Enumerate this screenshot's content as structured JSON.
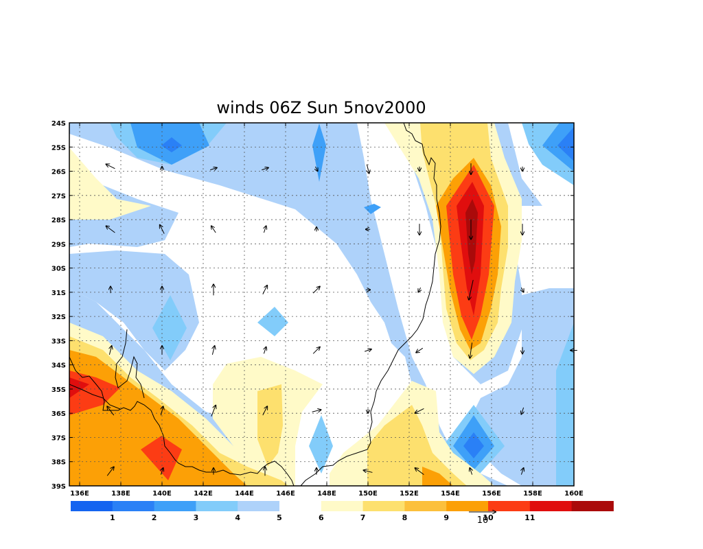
{
  "chart_data": {
    "type": "contour-map",
    "title": "winds 06Z Sun 5nov2000",
    "x_ticks": [
      "136E",
      "138E",
      "140E",
      "142E",
      "144E",
      "146E",
      "148E",
      "150E",
      "152E",
      "154E",
      "156E",
      "158E",
      "160E"
    ],
    "y_ticks": [
      "24S",
      "25S",
      "26S",
      "27S",
      "28S",
      "29S",
      "30S",
      "31S",
      "32S",
      "33S",
      "34S",
      "35S",
      "36S",
      "37S",
      "38S",
      "39S"
    ],
    "xlim": [
      135.5,
      160
    ],
    "ylim": [
      24,
      39
    ],
    "grid": true,
    "colorbar": {
      "colors": [
        "#1464f0",
        "#2a80f6",
        "#3ea0f8",
        "#82ccfa",
        "#aed2fa",
        "#ffffff",
        "#fffac8",
        "#fde06e",
        "#fcc03c",
        "#fca006",
        "#fc3c14",
        "#e00e0e",
        "#aa0a0a"
      ],
      "labels": [
        "1",
        "2",
        "3",
        "4",
        "5",
        "6",
        "7",
        "8",
        "9",
        "10",
        "11"
      ]
    },
    "vector_reference": {
      "label": "10"
    },
    "vectors": [
      {
        "lon": 137.5,
        "lat": 25.8,
        "u": -4,
        "v": 2
      },
      {
        "lon": 140.0,
        "lat": 25.9,
        "u": 0,
        "v": 2
      },
      {
        "lon": 142.5,
        "lat": 25.9,
        "u": 3,
        "v": 1
      },
      {
        "lon": 145.0,
        "lat": 25.9,
        "u": 3,
        "v": 1
      },
      {
        "lon": 147.5,
        "lat": 25.9,
        "u": 1,
        "v": -2
      },
      {
        "lon": 150.0,
        "lat": 25.9,
        "u": 1,
        "v": -4
      },
      {
        "lon": 152.5,
        "lat": 25.9,
        "u": 0,
        "v": -2
      },
      {
        "lon": 155.0,
        "lat": 25.9,
        "u": 0,
        "v": -5
      },
      {
        "lon": 157.5,
        "lat": 25.9,
        "u": 0,
        "v": -2
      },
      {
        "lon": 137.5,
        "lat": 28.4,
        "u": -4,
        "v": 3
      },
      {
        "lon": 140.0,
        "lat": 28.4,
        "u": -2,
        "v": 4
      },
      {
        "lon": 142.5,
        "lat": 28.4,
        "u": -2,
        "v": 3
      },
      {
        "lon": 145.0,
        "lat": 28.4,
        "u": 1,
        "v": 3
      },
      {
        "lon": 147.5,
        "lat": 28.4,
        "u": 0,
        "v": 2
      },
      {
        "lon": 150.0,
        "lat": 28.4,
        "u": -2,
        "v": 0
      },
      {
        "lon": 152.5,
        "lat": 28.4,
        "u": 0,
        "v": -5
      },
      {
        "lon": 155.0,
        "lat": 28.4,
        "u": 0,
        "v": -9
      },
      {
        "lon": 157.5,
        "lat": 28.4,
        "u": 0,
        "v": -5
      },
      {
        "lon": 137.5,
        "lat": 30.9,
        "u": 0,
        "v": 3
      },
      {
        "lon": 140.0,
        "lat": 30.9,
        "u": 0,
        "v": 3
      },
      {
        "lon": 142.5,
        "lat": 30.9,
        "u": 0,
        "v": 5
      },
      {
        "lon": 145.0,
        "lat": 30.9,
        "u": 2,
        "v": 4
      },
      {
        "lon": 147.5,
        "lat": 30.9,
        "u": 3,
        "v": 3
      },
      {
        "lon": 150.0,
        "lat": 30.9,
        "u": 2,
        "v": 0
      },
      {
        "lon": 152.5,
        "lat": 30.9,
        "u": -1,
        "v": -2
      },
      {
        "lon": 155.0,
        "lat": 30.9,
        "u": -2,
        "v": -9
      },
      {
        "lon": 157.5,
        "lat": 30.9,
        "u": 1,
        "v": -2
      },
      {
        "lon": 137.5,
        "lat": 33.4,
        "u": 1,
        "v": 4
      },
      {
        "lon": 140.0,
        "lat": 33.4,
        "u": 0,
        "v": 4
      },
      {
        "lon": 142.5,
        "lat": 33.4,
        "u": 1,
        "v": 4
      },
      {
        "lon": 145.0,
        "lat": 33.4,
        "u": 1,
        "v": 3
      },
      {
        "lon": 147.5,
        "lat": 33.4,
        "u": 3,
        "v": 3
      },
      {
        "lon": 150.0,
        "lat": 33.4,
        "u": 3,
        "v": 1
      },
      {
        "lon": 152.5,
        "lat": 33.4,
        "u": -3,
        "v": -2
      },
      {
        "lon": 155.0,
        "lat": 33.4,
        "u": -1,
        "v": -7
      },
      {
        "lon": 157.5,
        "lat": 33.4,
        "u": 0,
        "v": -3
      },
      {
        "lon": 160.0,
        "lat": 33.4,
        "u": -3,
        "v": 0
      },
      {
        "lon": 137.5,
        "lat": 35.9,
        "u": -3,
        "v": 4
      },
      {
        "lon": 140.0,
        "lat": 35.9,
        "u": 1,
        "v": 4
      },
      {
        "lon": 142.5,
        "lat": 35.9,
        "u": 2,
        "v": 5
      },
      {
        "lon": 145.0,
        "lat": 35.9,
        "u": 2,
        "v": 4
      },
      {
        "lon": 147.5,
        "lat": 35.9,
        "u": 4,
        "v": 1
      },
      {
        "lon": 150.0,
        "lat": 35.9,
        "u": 0,
        "v": -2
      },
      {
        "lon": 152.5,
        "lat": 35.9,
        "u": -4,
        "v": -2
      },
      {
        "lon": 157.5,
        "lat": 35.9,
        "u": -1,
        "v": -3
      },
      {
        "lon": 137.5,
        "lat": 38.4,
        "u": 3,
        "v": 4
      },
      {
        "lon": 140.0,
        "lat": 38.4,
        "u": 1,
        "v": 3
      },
      {
        "lon": 142.5,
        "lat": 38.4,
        "u": 0,
        "v": 3
      },
      {
        "lon": 145.0,
        "lat": 38.4,
        "u": 0,
        "v": 4
      },
      {
        "lon": 147.5,
        "lat": 38.4,
        "u": 0,
        "v": 3
      },
      {
        "lon": 150.0,
        "lat": 38.4,
        "u": -4,
        "v": 1
      },
      {
        "lon": 152.5,
        "lat": 38.4,
        "u": -4,
        "v": 3
      },
      {
        "lon": 155.0,
        "lat": 38.4,
        "u": -1,
        "v": 3
      },
      {
        "lon": 157.5,
        "lat": 38.4,
        "u": 1,
        "v": 3
      }
    ]
  }
}
